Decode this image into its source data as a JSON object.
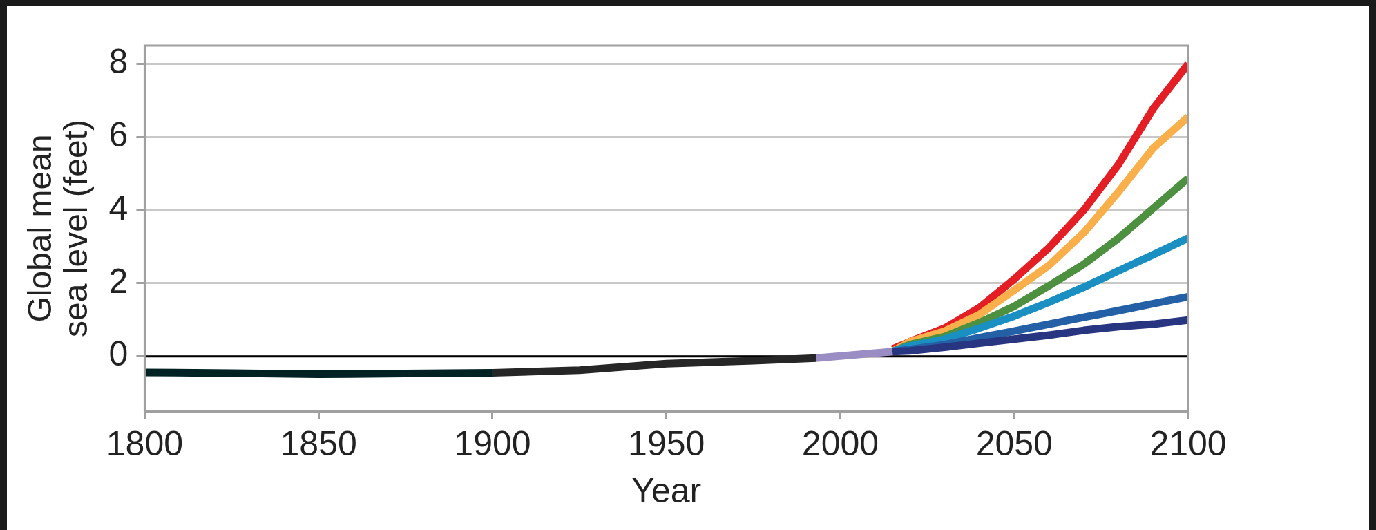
{
  "chart_data": {
    "type": "line",
    "xlabel": "Year",
    "ylabel": "Global mean\nsea level (feet)",
    "xlim": [
      1800,
      2100
    ],
    "xticks": [
      1800,
      1850,
      1900,
      1950,
      2000,
      2050,
      2100
    ],
    "ylim": [
      -1.5,
      8.5
    ],
    "yticks": [
      0,
      2,
      4,
      6,
      8
    ],
    "grid": "y",
    "legend": false,
    "marker": "none",
    "line_style": "solid",
    "ref_lines": [
      {
        "axis": "y",
        "value": 0,
        "color": "#000000"
      }
    ],
    "series": [
      {
        "color": "#002222",
        "x": [
          1800,
          1825,
          1850,
          1875,
          1900
        ],
        "values": [
          -0.44,
          -0.46,
          -0.49,
          -0.47,
          -0.45
        ]
      },
      {
        "color": "#262626",
        "x": [
          1900,
          1925,
          1950,
          1975,
          1993
        ],
        "values": [
          -0.45,
          -0.38,
          -0.2,
          -0.12,
          -0.05
        ]
      },
      {
        "color": "#9a8dc4",
        "x": [
          1993,
          2015
        ],
        "values": [
          -0.05,
          0.13
        ]
      },
      {
        "color": "#283580",
        "x": [
          2015,
          2020,
          2030,
          2040,
          2050,
          2060,
          2070,
          2080,
          2090,
          2100
        ],
        "values": [
          0.13,
          0.15,
          0.25,
          0.36,
          0.47,
          0.58,
          0.71,
          0.81,
          0.88,
          0.99
        ]
      },
      {
        "color": "#2360a5",
        "x": [
          2015,
          2020,
          2030,
          2040,
          2050,
          2060,
          2070,
          2080,
          2090,
          2100
        ],
        "values": [
          0.13,
          0.19,
          0.32,
          0.51,
          0.69,
          0.88,
          1.07,
          1.25,
          1.44,
          1.63
        ]
      },
      {
        "color": "#1a8fc2",
        "x": [
          2015,
          2020,
          2030,
          2040,
          2050,
          2060,
          2070,
          2080,
          2090,
          2100
        ],
        "values": [
          0.13,
          0.28,
          0.47,
          0.77,
          1.1,
          1.48,
          1.89,
          2.34,
          2.78,
          3.23
        ]
      },
      {
        "color": "#4d9040",
        "x": [
          2015,
          2020,
          2030,
          2040,
          2050,
          2060,
          2070,
          2080,
          2090,
          2100
        ],
        "values": [
          0.13,
          0.32,
          0.54,
          0.92,
          1.37,
          1.93,
          2.52,
          3.23,
          4.05,
          4.87
        ]
      },
      {
        "color": "#f9b04b",
        "x": [
          2015,
          2020,
          2030,
          2040,
          2050,
          2060,
          2070,
          2080,
          2090,
          2100
        ],
        "values": [
          0.13,
          0.4,
          0.69,
          1.14,
          1.81,
          2.49,
          3.38,
          4.5,
          5.7,
          6.55
        ]
      },
      {
        "color": "#e31e24",
        "x": [
          2015,
          2020,
          2030,
          2040,
          2050,
          2060,
          2070,
          2080,
          2090,
          2100
        ],
        "values": [
          0.2,
          0.4,
          0.77,
          1.33,
          2.11,
          2.97,
          4.0,
          5.25,
          6.78,
          8.0
        ]
      }
    ]
  }
}
